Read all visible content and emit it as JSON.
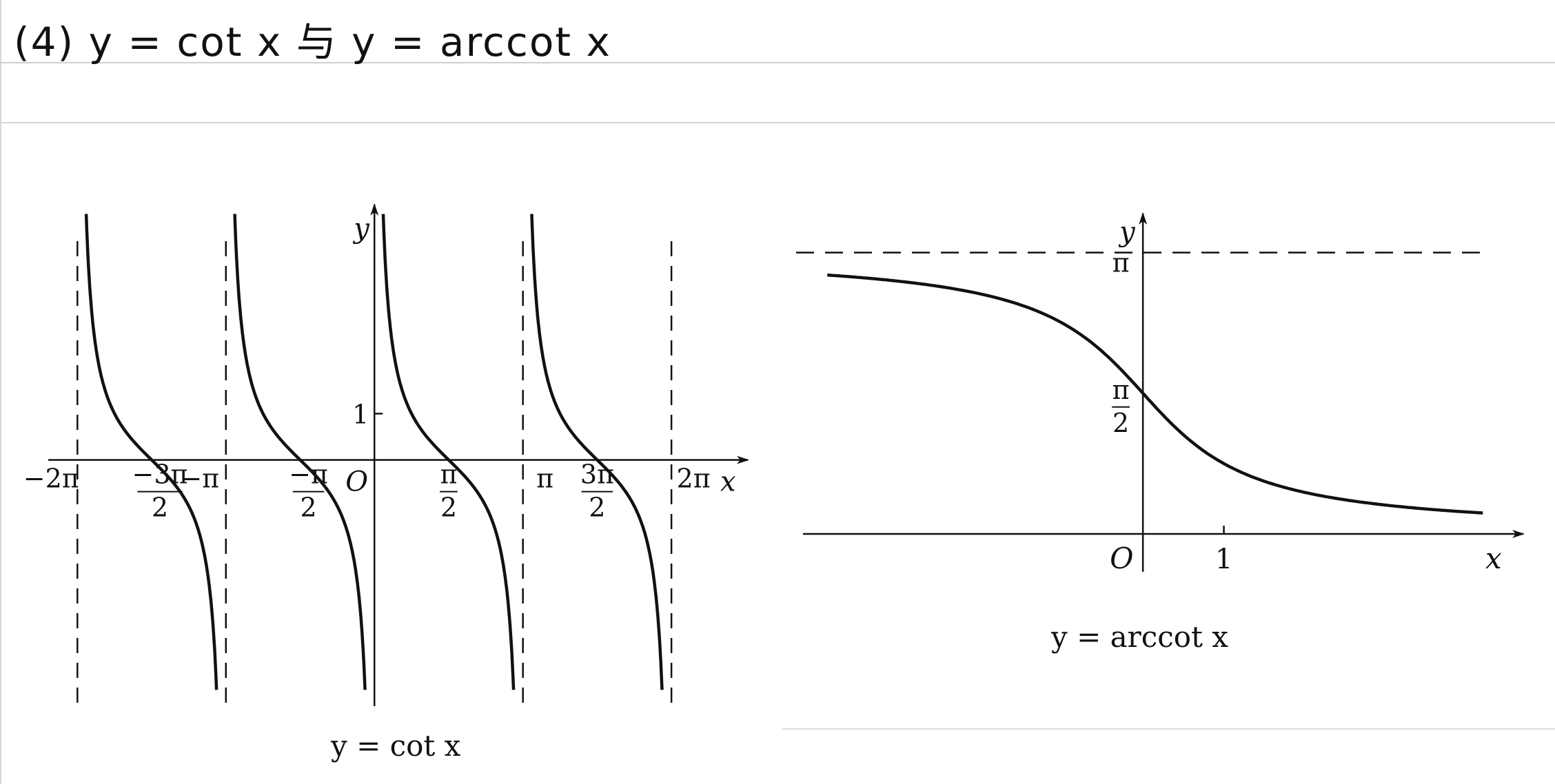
{
  "header": {
    "title": "(4) y = cot x 与 y = arccot x"
  },
  "chart_data": [
    {
      "type": "line",
      "function": "cot",
      "title": "y = cot x",
      "xlabel": "x",
      "ylabel": "y",
      "origin_label": "O",
      "xlim": [
        -6.9,
        7.9
      ],
      "ylim": [
        -5.1,
        5.4
      ],
      "asymptotes": [
        -6.2832,
        -3.1416,
        0,
        3.1416,
        6.2832
      ],
      "zeros": [
        -4.7124,
        -1.5708,
        1.5708,
        4.7124
      ],
      "x_ticks": [
        {
          "value": -6.2832,
          "label": "−2π"
        },
        {
          "value": -4.7124,
          "label": "−3π/2"
        },
        {
          "value": -3.1416,
          "label": "−π"
        },
        {
          "value": -1.5708,
          "label": "−π/2"
        },
        {
          "value": 1.5708,
          "label": "π/2"
        },
        {
          "value": 3.1416,
          "label": "π"
        },
        {
          "value": 4.7124,
          "label": "3π/2"
        },
        {
          "value": 6.2832,
          "label": "2π"
        }
      ],
      "y_ticks": [
        {
          "value": 1,
          "label": "1"
        }
      ],
      "branches": [
        {
          "x_range": [
            -6.2832,
            -3.1416
          ]
        },
        {
          "x_range": [
            -3.1416,
            0
          ]
        },
        {
          "x_range": [
            0,
            3.1416
          ]
        },
        {
          "x_range": [
            3.1416,
            6.2832
          ]
        }
      ],
      "grid": false
    },
    {
      "type": "line",
      "function": "arccot",
      "title": "y = arccot x",
      "xlabel": "x",
      "ylabel": "y",
      "origin_label": "O",
      "xlim": [
        -4.2,
        4.7
      ],
      "ylim": [
        0,
        3.5
      ],
      "x_range": [
        -3.9,
        4.2
      ],
      "asymptote_y": 3.1416,
      "intercept_y": 1.5708,
      "x_ticks": [
        {
          "value": 1,
          "label": "1"
        }
      ],
      "y_ticks": [
        {
          "value": 1.5708,
          "label": "π/2"
        },
        {
          "value": 3.1416,
          "label": "π"
        }
      ],
      "grid": false
    }
  ]
}
